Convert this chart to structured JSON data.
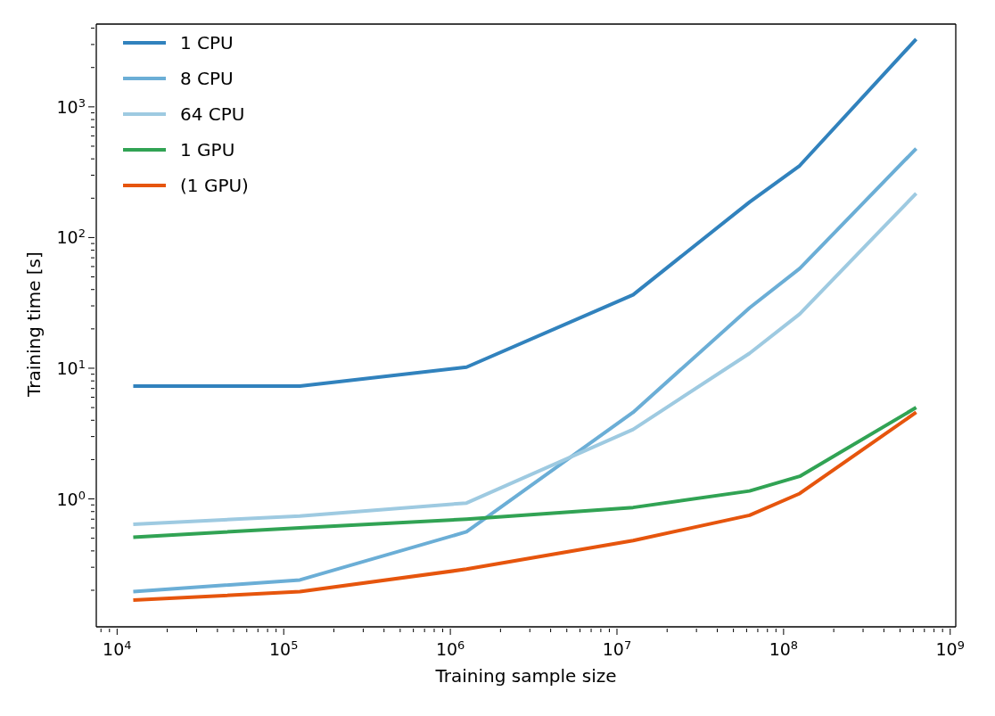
{
  "chart_data": {
    "type": "line",
    "xlabel": "Training sample size",
    "ylabel": "Training time [s]",
    "log": "xy",
    "legend": "top left",
    "line_style": "solid",
    "x": [
      12500,
      125000,
      1250000,
      12500000,
      62500000,
      125000000,
      625000000
    ],
    "xlim": [
      7500,
      1080000000
    ],
    "xticks": [
      {
        "value": 8000,
        "label": null
      },
      {
        "value": 9000,
        "label": null
      },
      {
        "value": 10000,
        "label": "10$^{4}$"
      },
      {
        "value": 20000,
        "label": null
      },
      {
        "value": 30000,
        "label": null
      },
      {
        "value": 40000,
        "label": null
      },
      {
        "value": 50000,
        "label": null
      },
      {
        "value": 60000,
        "label": null
      },
      {
        "value": 70000,
        "label": null
      },
      {
        "value": 80000,
        "label": null
      },
      {
        "value": 90000,
        "label": null
      },
      {
        "value": 100000,
        "label": "10$^{5}$"
      },
      {
        "value": 200000,
        "label": null
      },
      {
        "value": 300000,
        "label": null
      },
      {
        "value": 400000,
        "label": null
      },
      {
        "value": 500000,
        "label": null
      },
      {
        "value": 600000,
        "label": null
      },
      {
        "value": 700000,
        "label": null
      },
      {
        "value": 800000,
        "label": null
      },
      {
        "value": 900000,
        "label": null
      },
      {
        "value": 1000000,
        "label": "10$^{6}$"
      },
      {
        "value": 2000000,
        "label": null
      },
      {
        "value": 3000000,
        "label": null
      },
      {
        "value": 4000000,
        "label": null
      },
      {
        "value": 5000000,
        "label": null
      },
      {
        "value": 6000000,
        "label": null
      },
      {
        "value": 7000000,
        "label": null
      },
      {
        "value": 8000000,
        "label": null
      },
      {
        "value": 9000000,
        "label": null
      },
      {
        "value": 10000000,
        "label": "10$^{7}$"
      },
      {
        "value": 20000000,
        "label": null
      },
      {
        "value": 30000000,
        "label": null
      },
      {
        "value": 40000000,
        "label": null
      },
      {
        "value": 50000000,
        "label": null
      },
      {
        "value": 60000000,
        "label": null
      },
      {
        "value": 70000000,
        "label": null
      },
      {
        "value": 80000000,
        "label": null
      },
      {
        "value": 90000000,
        "label": null
      },
      {
        "value": 100000000,
        "label": "10$^{8}$"
      },
      {
        "value": 200000000,
        "label": null
      },
      {
        "value": 300000000,
        "label": null
      },
      {
        "value": 400000000,
        "label": null
      },
      {
        "value": 500000000,
        "label": null
      },
      {
        "value": 600000000,
        "label": null
      },
      {
        "value": 700000000,
        "label": null
      },
      {
        "value": 800000000,
        "label": null
      },
      {
        "value": 900000000,
        "label": null
      },
      {
        "value": 1000000000,
        "label": "10$^{9}$"
      }
    ],
    "ylim": [
      0.105,
      4300
    ],
    "yticks": [
      {
        "value": 0.2,
        "label": null
      },
      {
        "value": 0.3,
        "label": null
      },
      {
        "value": 0.4,
        "label": null
      },
      {
        "value": 0.5,
        "label": null
      },
      {
        "value": 0.6,
        "label": null
      },
      {
        "value": 0.7,
        "label": null
      },
      {
        "value": 0.8,
        "label": null
      },
      {
        "value": 0.9,
        "label": null
      },
      {
        "value": 1,
        "label": "10$^{0}$"
      },
      {
        "value": 2,
        "label": null
      },
      {
        "value": 3,
        "label": null
      },
      {
        "value": 4,
        "label": null
      },
      {
        "value": 5,
        "label": null
      },
      {
        "value": 6,
        "label": null
      },
      {
        "value": 7,
        "label": null
      },
      {
        "value": 8,
        "label": null
      },
      {
        "value": 9,
        "label": null
      },
      {
        "value": 10,
        "label": "10$^{1}$"
      },
      {
        "value": 20,
        "label": null
      },
      {
        "value": 30,
        "label": null
      },
      {
        "value": 40,
        "label": null
      },
      {
        "value": 50,
        "label": null
      },
      {
        "value": 60,
        "label": null
      },
      {
        "value": 70,
        "label": null
      },
      {
        "value": 80,
        "label": null
      },
      {
        "value": 90,
        "label": null
      },
      {
        "value": 100,
        "label": "10$^{2}$"
      },
      {
        "value": 200,
        "label": null
      },
      {
        "value": 300,
        "label": null
      },
      {
        "value": 400,
        "label": null
      },
      {
        "value": 500,
        "label": null
      },
      {
        "value": 600,
        "label": null
      },
      {
        "value": 700,
        "label": null
      },
      {
        "value": 800,
        "label": null
      },
      {
        "value": 900,
        "label": null
      },
      {
        "value": 1000,
        "label": "10$^{3}$"
      },
      {
        "value": 2000,
        "label": null
      },
      {
        "value": 3000,
        "label": null
      },
      {
        "value": 4000,
        "label": null
      }
    ],
    "series": [
      {
        "name": "1 CPU",
        "color": "#3182bd",
        "values": [
          7.3,
          7.3,
          10.2,
          36.5,
          187,
          355,
          3300
        ]
      },
      {
        "name": "8 CPU",
        "color": "#6baed6",
        "values": [
          0.195,
          0.24,
          0.56,
          4.6,
          29,
          58,
          480
        ]
      },
      {
        "name": "64 CPU",
        "color": "#9ecae1",
        "values": [
          0.64,
          0.74,
          0.93,
          3.4,
          13,
          26,
          218
        ]
      },
      {
        "name": "1 GPU",
        "color": "#31a354",
        "values": [
          0.51,
          0.6,
          0.7,
          0.86,
          1.15,
          1.49,
          5.0
        ]
      },
      {
        "name": "(1 GPU)",
        "color": "#e6550d",
        "values": [
          0.168,
          0.195,
          0.29,
          0.48,
          0.75,
          1.1,
          4.6
        ]
      }
    ]
  }
}
